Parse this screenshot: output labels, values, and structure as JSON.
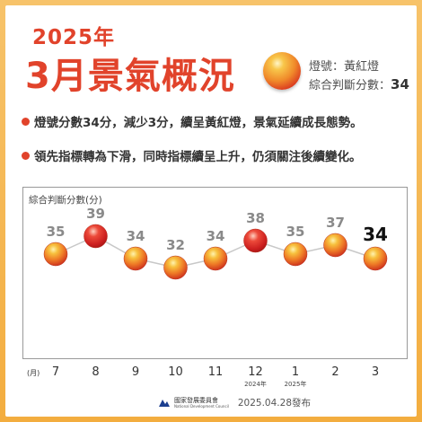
{
  "header": {
    "year_title": "2025年",
    "month_title": "3月景氣概況",
    "signal_label": "燈號：黃紅燈",
    "score_label": "綜合判斷分數：",
    "score_value": "34"
  },
  "bullets": [
    "燈號分數34分，減少3分，續呈黃紅燈，景氣延續成長態勢。",
    "領先指標轉為下滑，同時指標續呈上升，仍須關注後續變化。"
  ],
  "chart_data": {
    "type": "line",
    "ylabel": "綜合判斷分數(分)",
    "xlabel": "(月)",
    "categories": [
      "7",
      "8",
      "9",
      "10",
      "11",
      "12",
      "1",
      "2",
      "3"
    ],
    "year_markers": [
      {
        "category": "12",
        "label": "2024年"
      },
      {
        "category": "1",
        "label": "2025年"
      }
    ],
    "values": [
      35,
      39,
      34,
      32,
      34,
      38,
      35,
      37,
      34
    ],
    "signals": [
      "yellow-red",
      "red",
      "yellow-red",
      "yellow-red",
      "yellow-red",
      "red",
      "yellow-red",
      "yellow-red",
      "yellow-red"
    ],
    "highlight_last": true
  },
  "colors": {
    "accent": "#e1432b",
    "background": "#f3ad3f",
    "line": "#c8c8c8",
    "value_label": "#8a8a8a"
  },
  "footer": {
    "org_name": "國家發展委員會",
    "org_name_en": "National Development Council",
    "date_text": "2025.04.28發布"
  }
}
